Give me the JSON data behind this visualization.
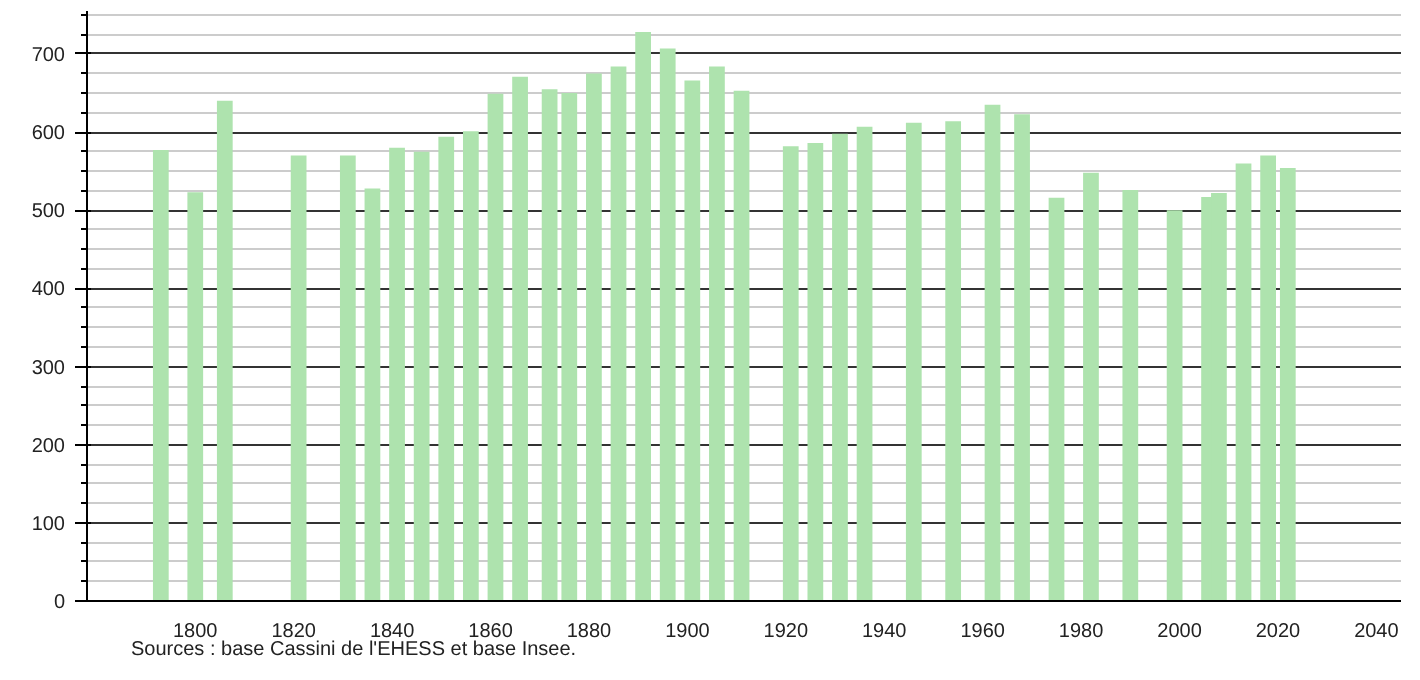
{
  "chart_data": {
    "type": "bar",
    "x": [
      1793,
      1800,
      1806,
      1821,
      1831,
      1836,
      1841,
      1846,
      1851,
      1856,
      1861,
      1866,
      1872,
      1876,
      1881,
      1886,
      1891,
      1896,
      1901,
      1906,
      1911,
      1921,
      1926,
      1931,
      1936,
      1946,
      1954,
      1962,
      1968,
      1975,
      1982,
      1990,
      1999,
      2006,
      2008,
      2013,
      2018,
      2022
    ],
    "series": [
      {
        "color": "#aee3ae",
        "values": [
          577,
          523,
          640,
          570,
          570,
          528,
          580,
          575,
          594,
          601,
          649,
          671,
          655,
          650,
          675,
          684,
          728,
          707,
          666,
          684,
          653,
          582,
          586,
          598,
          607,
          612,
          614,
          635,
          623,
          516,
          548,
          526,
          500,
          517,
          522,
          560,
          570,
          554
        ]
      }
    ],
    "xlim": [
      1778,
      2045
    ],
    "xticks": [
      1800,
      1820,
      1840,
      1860,
      1880,
      1900,
      1920,
      1940,
      1960,
      1980,
      2000,
      2020,
      2040
    ],
    "ylim": [
      0,
      755
    ],
    "yticks": [
      0,
      {
        "value": 25,
        "label": null
      },
      {
        "value": 50,
        "label": null
      },
      {
        "value": 75,
        "label": null
      },
      100,
      {
        "value": 125,
        "label": null
      },
      {
        "value": 150,
        "label": null
      },
      {
        "value": 175,
        "label": null
      },
      200,
      {
        "value": 225,
        "label": null
      },
      {
        "value": 250,
        "label": null
      },
      {
        "value": 275,
        "label": null
      },
      300,
      {
        "value": 325,
        "label": null
      },
      {
        "value": 350,
        "label": null
      },
      {
        "value": 375,
        "label": null
      },
      400,
      {
        "value": 425,
        "label": null
      },
      {
        "value": 450,
        "label": null
      },
      {
        "value": 475,
        "label": null
      },
      500,
      {
        "value": 525,
        "label": null
      },
      {
        "value": 550,
        "label": null
      },
      {
        "value": 575,
        "label": null
      },
      600,
      {
        "value": 625,
        "label": null
      },
      {
        "value": 650,
        "label": null
      },
      {
        "value": 675,
        "label": null
      },
      700,
      {
        "value": 725,
        "label": null
      },
      {
        "value": 750,
        "label": null
      }
    ],
    "grid": "y",
    "annotations": [
      "Sources : base Cassini de l'EHESS et base Insee."
    ]
  }
}
